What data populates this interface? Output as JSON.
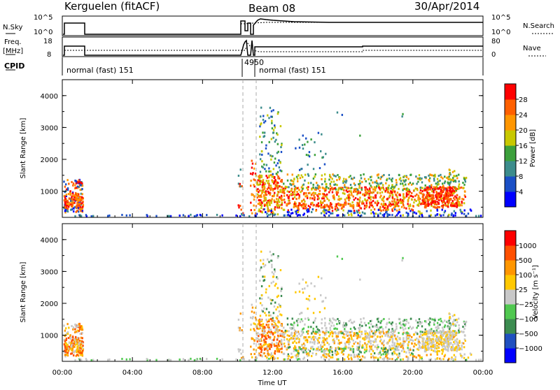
{
  "header": {
    "station": "Kerguelen (fitACF)",
    "beam": "Beam 08",
    "date": "30/Apr/2014"
  },
  "params": {
    "nsky_label": "N.Sky",
    "nsearch_label": "N.Search",
    "freq_label_line1": "Freq.",
    "freq_label_line2": "[MHz]",
    "nave_label": "Nave",
    "cpid_label": "CPID",
    "nsky_ticks": [
      "10^5",
      "10^0"
    ],
    "freq_ticks": [
      "18",
      "8"
    ],
    "nave_ticks": [
      "80",
      "0"
    ],
    "cpid_segments": [
      {
        "text": "normal (fast) 151",
        "start_hour": 1.2
      },
      {
        "text": "4950",
        "start_hour": 10.1
      },
      {
        "text": "normal (fast) 151",
        "start_hour": 10.7
      }
    ]
  },
  "chart_data": [
    {
      "type": "heatmap",
      "name": "power",
      "ylabel": "Slant Range [km]",
      "xlabel": "",
      "ylim": [
        180,
        4500
      ],
      "yticks": [
        "1000",
        "2000",
        "3000",
        "4000"
      ],
      "colorbar": {
        "label": "Power [dB]",
        "ticks": [
          "4",
          "8",
          "12",
          "16",
          "20",
          "24",
          "28"
        ],
        "colors": [
          "#0000ff",
          "#1a4fc6",
          "#3c8c8c",
          "#3ca03c",
          "#c8c800",
          "#ff9600",
          "#ff6000",
          "#ff0000"
        ]
      }
    },
    {
      "type": "heatmap",
      "name": "velocity",
      "ylabel": "Slant Range [km]",
      "xlabel": "Time UT",
      "xticks": [
        "00:00",
        "04:00",
        "08:00",
        "12:00",
        "16:00",
        "20:00",
        "00:00"
      ],
      "ylim": [
        180,
        4500
      ],
      "yticks": [
        "1000",
        "2000",
        "3000",
        "4000"
      ],
      "colorbar": {
        "label": "Velocity [m s⁻¹]",
        "ticks": [
          "1000",
          "500",
          "100",
          "25",
          "−25",
          "−100",
          "−500",
          "−1000"
        ],
        "colors": [
          "#0000ff",
          "#2050c0",
          "#3c8c50",
          "#50c850",
          "#c8c8c8",
          "#ffc800",
          "#ff9600",
          "#ff5000",
          "#ff0000"
        ]
      }
    }
  ]
}
